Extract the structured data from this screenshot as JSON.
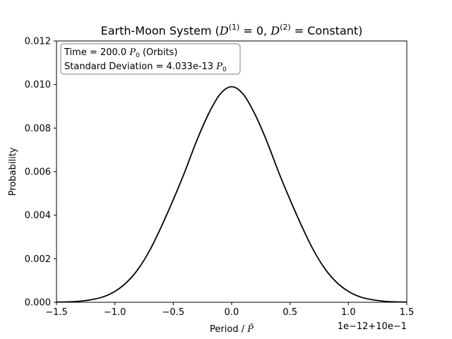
{
  "chart_data": {
    "type": "line",
    "title": "Earth-Moon System (D(1) = 0, D(2) = Constant)",
    "title_parts": {
      "pre": "Earth-Moon System (",
      "d1_base": "D",
      "d1_sup": "(1)",
      "d1_rest": " = 0, ",
      "d2_base": "D",
      "d2_sup": "(2)",
      "d2_rest": " = Constant)"
    },
    "xlabel": "Period / P̃",
    "xlabel_parts": {
      "text": "Period / ",
      "symbol": "P̃"
    },
    "ylabel": "Probability",
    "x_offset_text": "1e−12+10e−1",
    "xlim": [
      -1.5,
      1.5
    ],
    "ylim": [
      0,
      0.012
    ],
    "x_ticks": [
      -1.5,
      -1.0,
      -0.5,
      0.0,
      0.5,
      1.0,
      1.5
    ],
    "x_tick_labels": [
      "−1.5",
      "−1.0",
      "−0.5",
      "0.0",
      "0.5",
      "1.0",
      "1.5"
    ],
    "y_ticks": [
      0,
      0.002,
      0.004,
      0.006,
      0.008,
      0.01,
      0.012
    ],
    "y_tick_labels": [
      "0.000",
      "0.002",
      "0.004",
      "0.006",
      "0.008",
      "0.010",
      "0.012"
    ],
    "grid": false,
    "series": [
      {
        "color": "#000000",
        "x": [
          -1.5,
          -1.4,
          -1.3,
          -1.2,
          -1.1,
          -1.0,
          -0.9,
          -0.8,
          -0.7,
          -0.6,
          -0.5,
          -0.4,
          -0.3,
          -0.2,
          -0.1,
          0.0,
          0.1,
          0.2,
          0.3,
          0.4,
          0.5,
          0.6,
          0.7,
          0.8,
          0.9,
          1.0,
          1.1,
          1.2,
          1.3,
          1.4,
          1.5
        ],
        "y": [
          1e-05,
          2e-05,
          5e-05,
          0.00012,
          0.00025,
          0.0005,
          0.00091,
          0.00153,
          0.0024,
          0.0035,
          0.00471,
          0.00601,
          0.00741,
          0.00863,
          0.00955,
          0.0099,
          0.00955,
          0.00863,
          0.00741,
          0.00601,
          0.00471,
          0.0035,
          0.0024,
          0.00153,
          0.00091,
          0.0005,
          0.00025,
          0.00012,
          5e-05,
          2e-05,
          1e-05
        ]
      }
    ],
    "annotation": {
      "line1_pre": "Time = 200.0 ",
      "line1_sym": "P",
      "line1_sub": "0",
      "line1_post": " (Orbits)",
      "line2_pre": "Standard Deviation = 4.033e-13 ",
      "line2_sym": "P",
      "line2_sub": "0",
      "placement": "top-left"
    }
  }
}
